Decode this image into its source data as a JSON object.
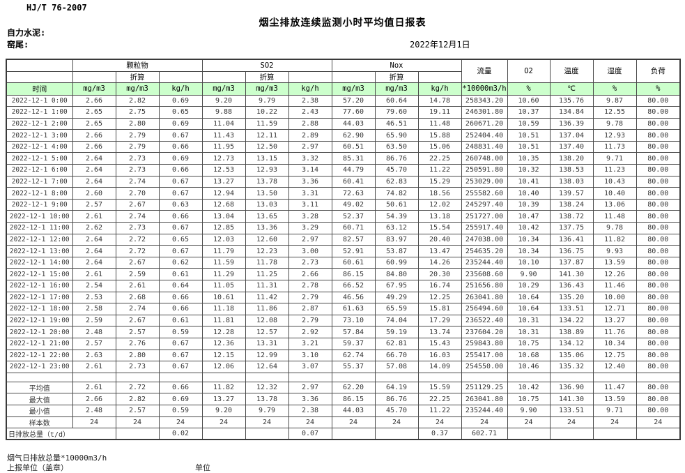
{
  "header": {
    "standard_code": "HJ/T 76-2007",
    "title": "烟尘排放连续监测小时平均值日报表",
    "company": "自力水泥:",
    "location": "窑尾:",
    "date": "2022年12月1日"
  },
  "colors": {
    "units_row_bg": "#ccffcc",
    "grid_border": "#4a4a4a"
  },
  "table": {
    "groups": {
      "pm": "颗粒物",
      "so2": "SO2",
      "nox": "Nox",
      "conv": "折算",
      "flow": "流量",
      "o2": "O2",
      "temp": "温度",
      "humidity": "湿度",
      "load": "负荷"
    },
    "units": {
      "time": "时间",
      "mgm3": "mg/m3",
      "kgh": "kg/h",
      "flow": "*10000m3/h",
      "pct": "%",
      "celsius": "℃"
    },
    "rows": [
      [
        "2022-12-1 0:00",
        "2.66",
        "2.82",
        "0.69",
        "9.20",
        "9.79",
        "2.38",
        "57.20",
        "60.64",
        "14.78",
        "258343.20",
        "10.60",
        "135.76",
        "9.87",
        "80.00"
      ],
      [
        "2022-12-1 1:00",
        "2.65",
        "2.75",
        "0.65",
        "9.88",
        "10.22",
        "2.43",
        "77.60",
        "79.60",
        "19.11",
        "246301.80",
        "10.37",
        "134.84",
        "12.55",
        "80.00"
      ],
      [
        "2022-12-1 2:00",
        "2.65",
        "2.80",
        "0.69",
        "11.04",
        "11.59",
        "2.88",
        "44.03",
        "46.51",
        "11.48",
        "260671.20",
        "10.59",
        "136.39",
        "9.78",
        "80.00"
      ],
      [
        "2022-12-1 3:00",
        "2.66",
        "2.79",
        "0.67",
        "11.43",
        "12.11",
        "2.89",
        "62.90",
        "65.90",
        "15.88",
        "252404.40",
        "10.51",
        "137.04",
        "12.93",
        "80.00"
      ],
      [
        "2022-12-1 4:00",
        "2.66",
        "2.79",
        "0.66",
        "11.95",
        "12.50",
        "2.97",
        "60.51",
        "63.50",
        "15.06",
        "248831.40",
        "10.51",
        "137.40",
        "11.73",
        "80.00"
      ],
      [
        "2022-12-1 5:00",
        "2.64",
        "2.73",
        "0.69",
        "12.73",
        "13.15",
        "3.32",
        "85.31",
        "86.76",
        "22.25",
        "260748.00",
        "10.35",
        "138.20",
        "9.71",
        "80.00"
      ],
      [
        "2022-12-1 6:00",
        "2.64",
        "2.73",
        "0.66",
        "12.53",
        "12.93",
        "3.14",
        "44.79",
        "45.70",
        "11.22",
        "250591.80",
        "10.32",
        "138.53",
        "11.23",
        "80.00"
      ],
      [
        "2022-12-1 7:00",
        "2.64",
        "2.74",
        "0.67",
        "13.27",
        "13.78",
        "3.36",
        "60.41",
        "62.83",
        "15.29",
        "253029.00",
        "10.41",
        "138.03",
        "10.43",
        "80.00"
      ],
      [
        "2022-12-1 8:00",
        "2.60",
        "2.70",
        "0.67",
        "12.94",
        "13.50",
        "3.31",
        "72.63",
        "74.82",
        "18.56",
        "255582.60",
        "10.40",
        "139.57",
        "10.40",
        "80.00"
      ],
      [
        "2022-12-1 9:00",
        "2.57",
        "2.67",
        "0.63",
        "12.68",
        "13.03",
        "3.11",
        "49.02",
        "50.61",
        "12.02",
        "245297.40",
        "10.39",
        "138.24",
        "13.06",
        "80.00"
      ],
      [
        "2022-12-1 10:00",
        "2.61",
        "2.74",
        "0.66",
        "13.04",
        "13.65",
        "3.28",
        "52.37",
        "54.39",
        "13.18",
        "251727.00",
        "10.47",
        "138.72",
        "11.48",
        "80.00"
      ],
      [
        "2022-12-1 11:00",
        "2.62",
        "2.73",
        "0.67",
        "12.85",
        "13.36",
        "3.29",
        "60.71",
        "63.12",
        "15.54",
        "255917.40",
        "10.42",
        "137.75",
        "9.78",
        "80.00"
      ],
      [
        "2022-12-1 12:00",
        "2.64",
        "2.72",
        "0.65",
        "12.03",
        "12.60",
        "2.97",
        "82.57",
        "83.97",
        "20.40",
        "247038.00",
        "10.34",
        "136.41",
        "11.82",
        "80.00"
      ],
      [
        "2022-12-1 13:00",
        "2.64",
        "2.72",
        "0.67",
        "11.79",
        "12.23",
        "3.00",
        "52.91",
        "53.87",
        "13.47",
        "254635.20",
        "10.34",
        "136.75",
        "9.93",
        "80.00"
      ],
      [
        "2022-12-1 14:00",
        "2.64",
        "2.67",
        "0.62",
        "11.59",
        "11.78",
        "2.73",
        "60.61",
        "60.99",
        "14.26",
        "235244.40",
        "10.10",
        "137.87",
        "13.59",
        "80.00"
      ],
      [
        "2022-12-1 15:00",
        "2.61",
        "2.59",
        "0.61",
        "11.29",
        "11.25",
        "2.66",
        "86.15",
        "84.80",
        "20.30",
        "235608.60",
        "9.90",
        "141.30",
        "12.26",
        "80.00"
      ],
      [
        "2022-12-1 16:00",
        "2.54",
        "2.61",
        "0.64",
        "11.05",
        "11.31",
        "2.78",
        "66.52",
        "67.95",
        "16.74",
        "251656.80",
        "10.29",
        "136.43",
        "11.46",
        "80.00"
      ],
      [
        "2022-12-1 17:00",
        "2.53",
        "2.68",
        "0.66",
        "10.61",
        "11.42",
        "2.79",
        "46.56",
        "49.29",
        "12.25",
        "263041.80",
        "10.64",
        "135.20",
        "10.00",
        "80.00"
      ],
      [
        "2022-12-1 18:00",
        "2.58",
        "2.74",
        "0.66",
        "11.18",
        "11.86",
        "2.87",
        "61.63",
        "65.59",
        "15.81",
        "256494.60",
        "10.64",
        "133.51",
        "12.71",
        "80.00"
      ],
      [
        "2022-12-1 19:00",
        "2.59",
        "2.67",
        "0.61",
        "11.81",
        "12.08",
        "2.79",
        "73.10",
        "74.04",
        "17.29",
        "236522.40",
        "10.31",
        "134.22",
        "13.27",
        "80.00"
      ],
      [
        "2022-12-1 20:00",
        "2.48",
        "2.57",
        "0.59",
        "12.28",
        "12.57",
        "2.92",
        "57.84",
        "59.19",
        "13.74",
        "237604.20",
        "10.31",
        "138.89",
        "11.76",
        "80.00"
      ],
      [
        "2022-12-1 21:00",
        "2.57",
        "2.76",
        "0.67",
        "12.36",
        "13.31",
        "3.21",
        "59.37",
        "62.81",
        "15.43",
        "259843.80",
        "10.75",
        "134.12",
        "10.34",
        "80.00"
      ],
      [
        "2022-12-1 22:00",
        "2.63",
        "2.80",
        "0.67",
        "12.15",
        "12.99",
        "3.10",
        "62.74",
        "66.70",
        "16.03",
        "255417.00",
        "10.68",
        "135.06",
        "12.75",
        "80.00"
      ],
      [
        "2022-12-1 23:00",
        "2.61",
        "2.73",
        "0.67",
        "12.06",
        "12.64",
        "3.07",
        "55.37",
        "57.08",
        "14.09",
        "254550.00",
        "10.46",
        "135.32",
        "12.40",
        "80.00"
      ]
    ],
    "summary": [
      {
        "label": "平均值",
        "values": [
          "2.61",
          "2.72",
          "0.66",
          "11.82",
          "12.32",
          "2.97",
          "62.20",
          "64.19",
          "15.59",
          "251129.25",
          "10.42",
          "136.90",
          "11.47",
          "80.00"
        ]
      },
      {
        "label": "最大值",
        "values": [
          "2.66",
          "2.82",
          "0.69",
          "13.27",
          "13.78",
          "3.36",
          "86.15",
          "86.76",
          "22.25",
          "263041.80",
          "10.75",
          "141.30",
          "13.59",
          "80.00"
        ]
      },
      {
        "label": "最小值",
        "values": [
          "2.48",
          "2.57",
          "0.59",
          "9.20",
          "9.79",
          "2.38",
          "44.03",
          "45.70",
          "11.22",
          "235244.40",
          "9.90",
          "133.51",
          "9.71",
          "80.00"
        ]
      },
      {
        "label": "样本数",
        "values": [
          "24",
          "24",
          "24",
          "24",
          "24",
          "24",
          "24",
          "24",
          "24",
          "24",
          "24",
          "24",
          "24",
          "24"
        ]
      }
    ],
    "daily_total": {
      "label": "日排放总量（t/d）",
      "values": [
        "",
        "0.02",
        "",
        "",
        "0.07",
        "",
        "",
        "0.37",
        "602.71",
        "",
        "",
        "",
        ""
      ]
    }
  },
  "footer": {
    "line1": "烟气日排放总量*10000m3/h",
    "line2_left": "上报单位（盖章）",
    "line2_right": "单位"
  }
}
